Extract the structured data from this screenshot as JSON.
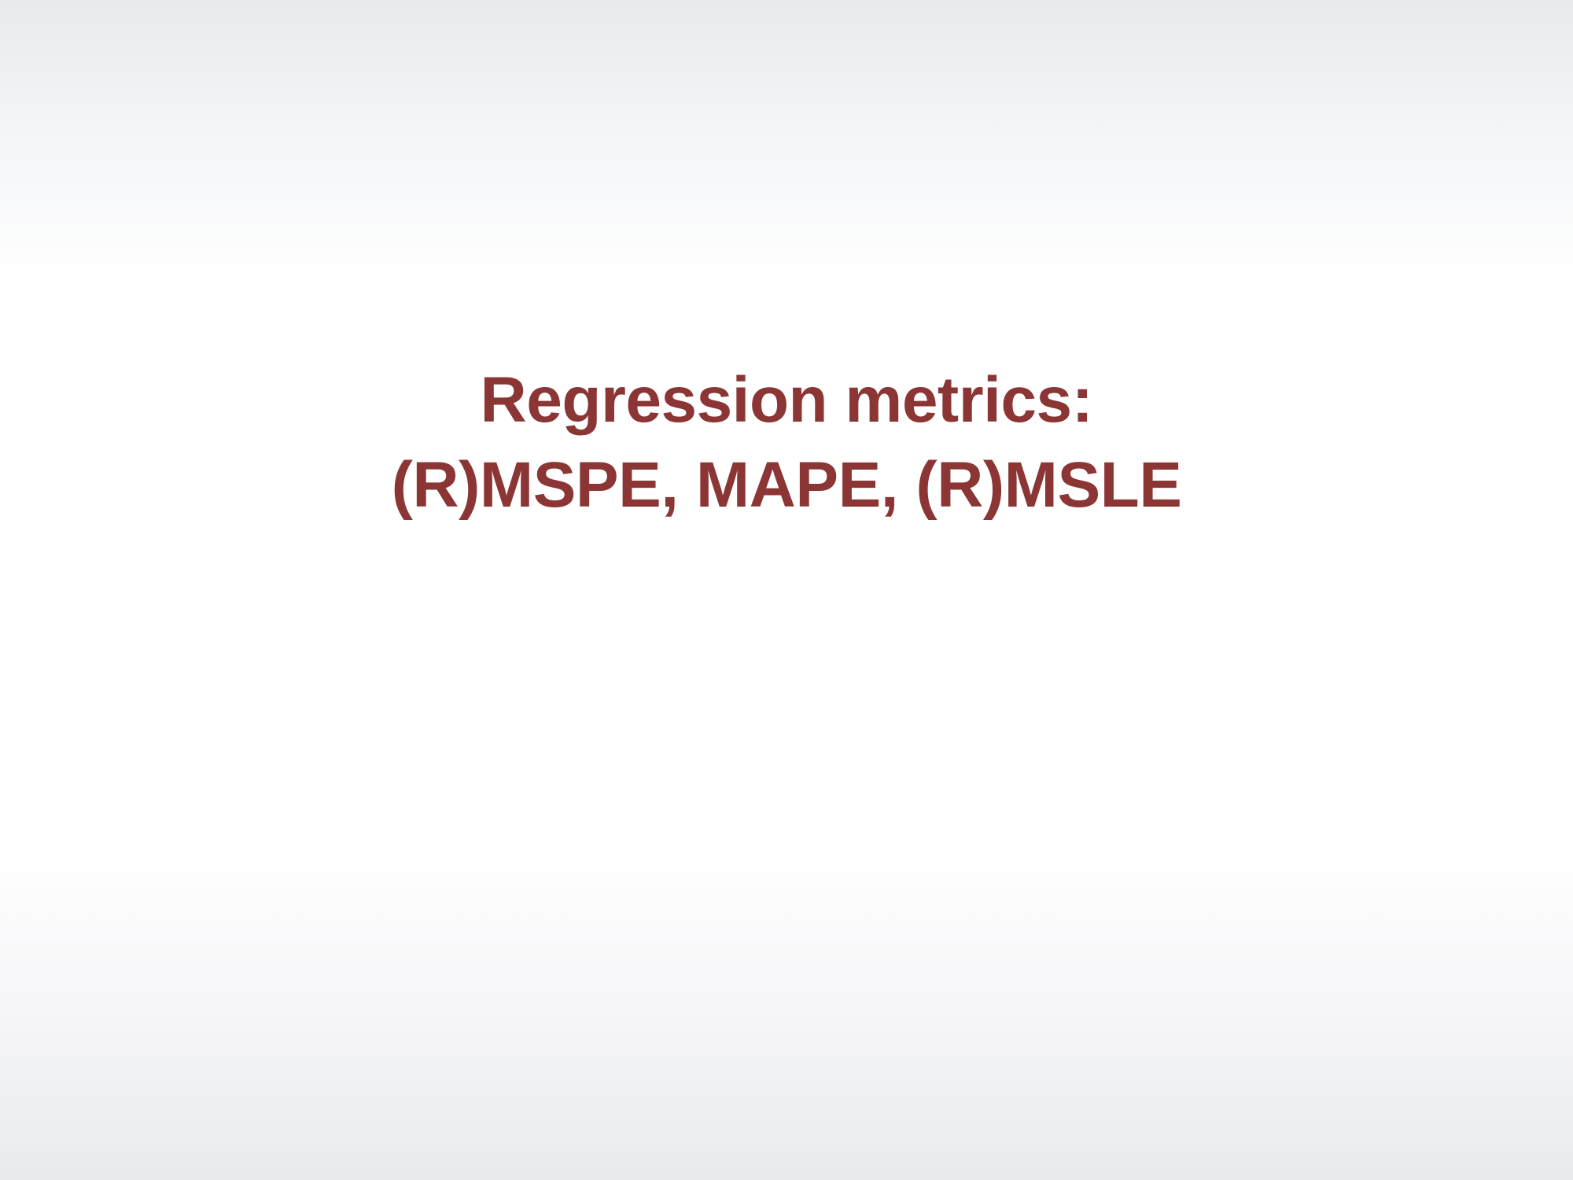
{
  "slide": {
    "title_line_1": "Regression metrics:",
    "title_line_2": "(R)MSPE, MAPE, (R)MSLE"
  },
  "colors": {
    "title": "#8b3535",
    "background_center": "#ffffff",
    "background_edge": "#e9eaee"
  }
}
